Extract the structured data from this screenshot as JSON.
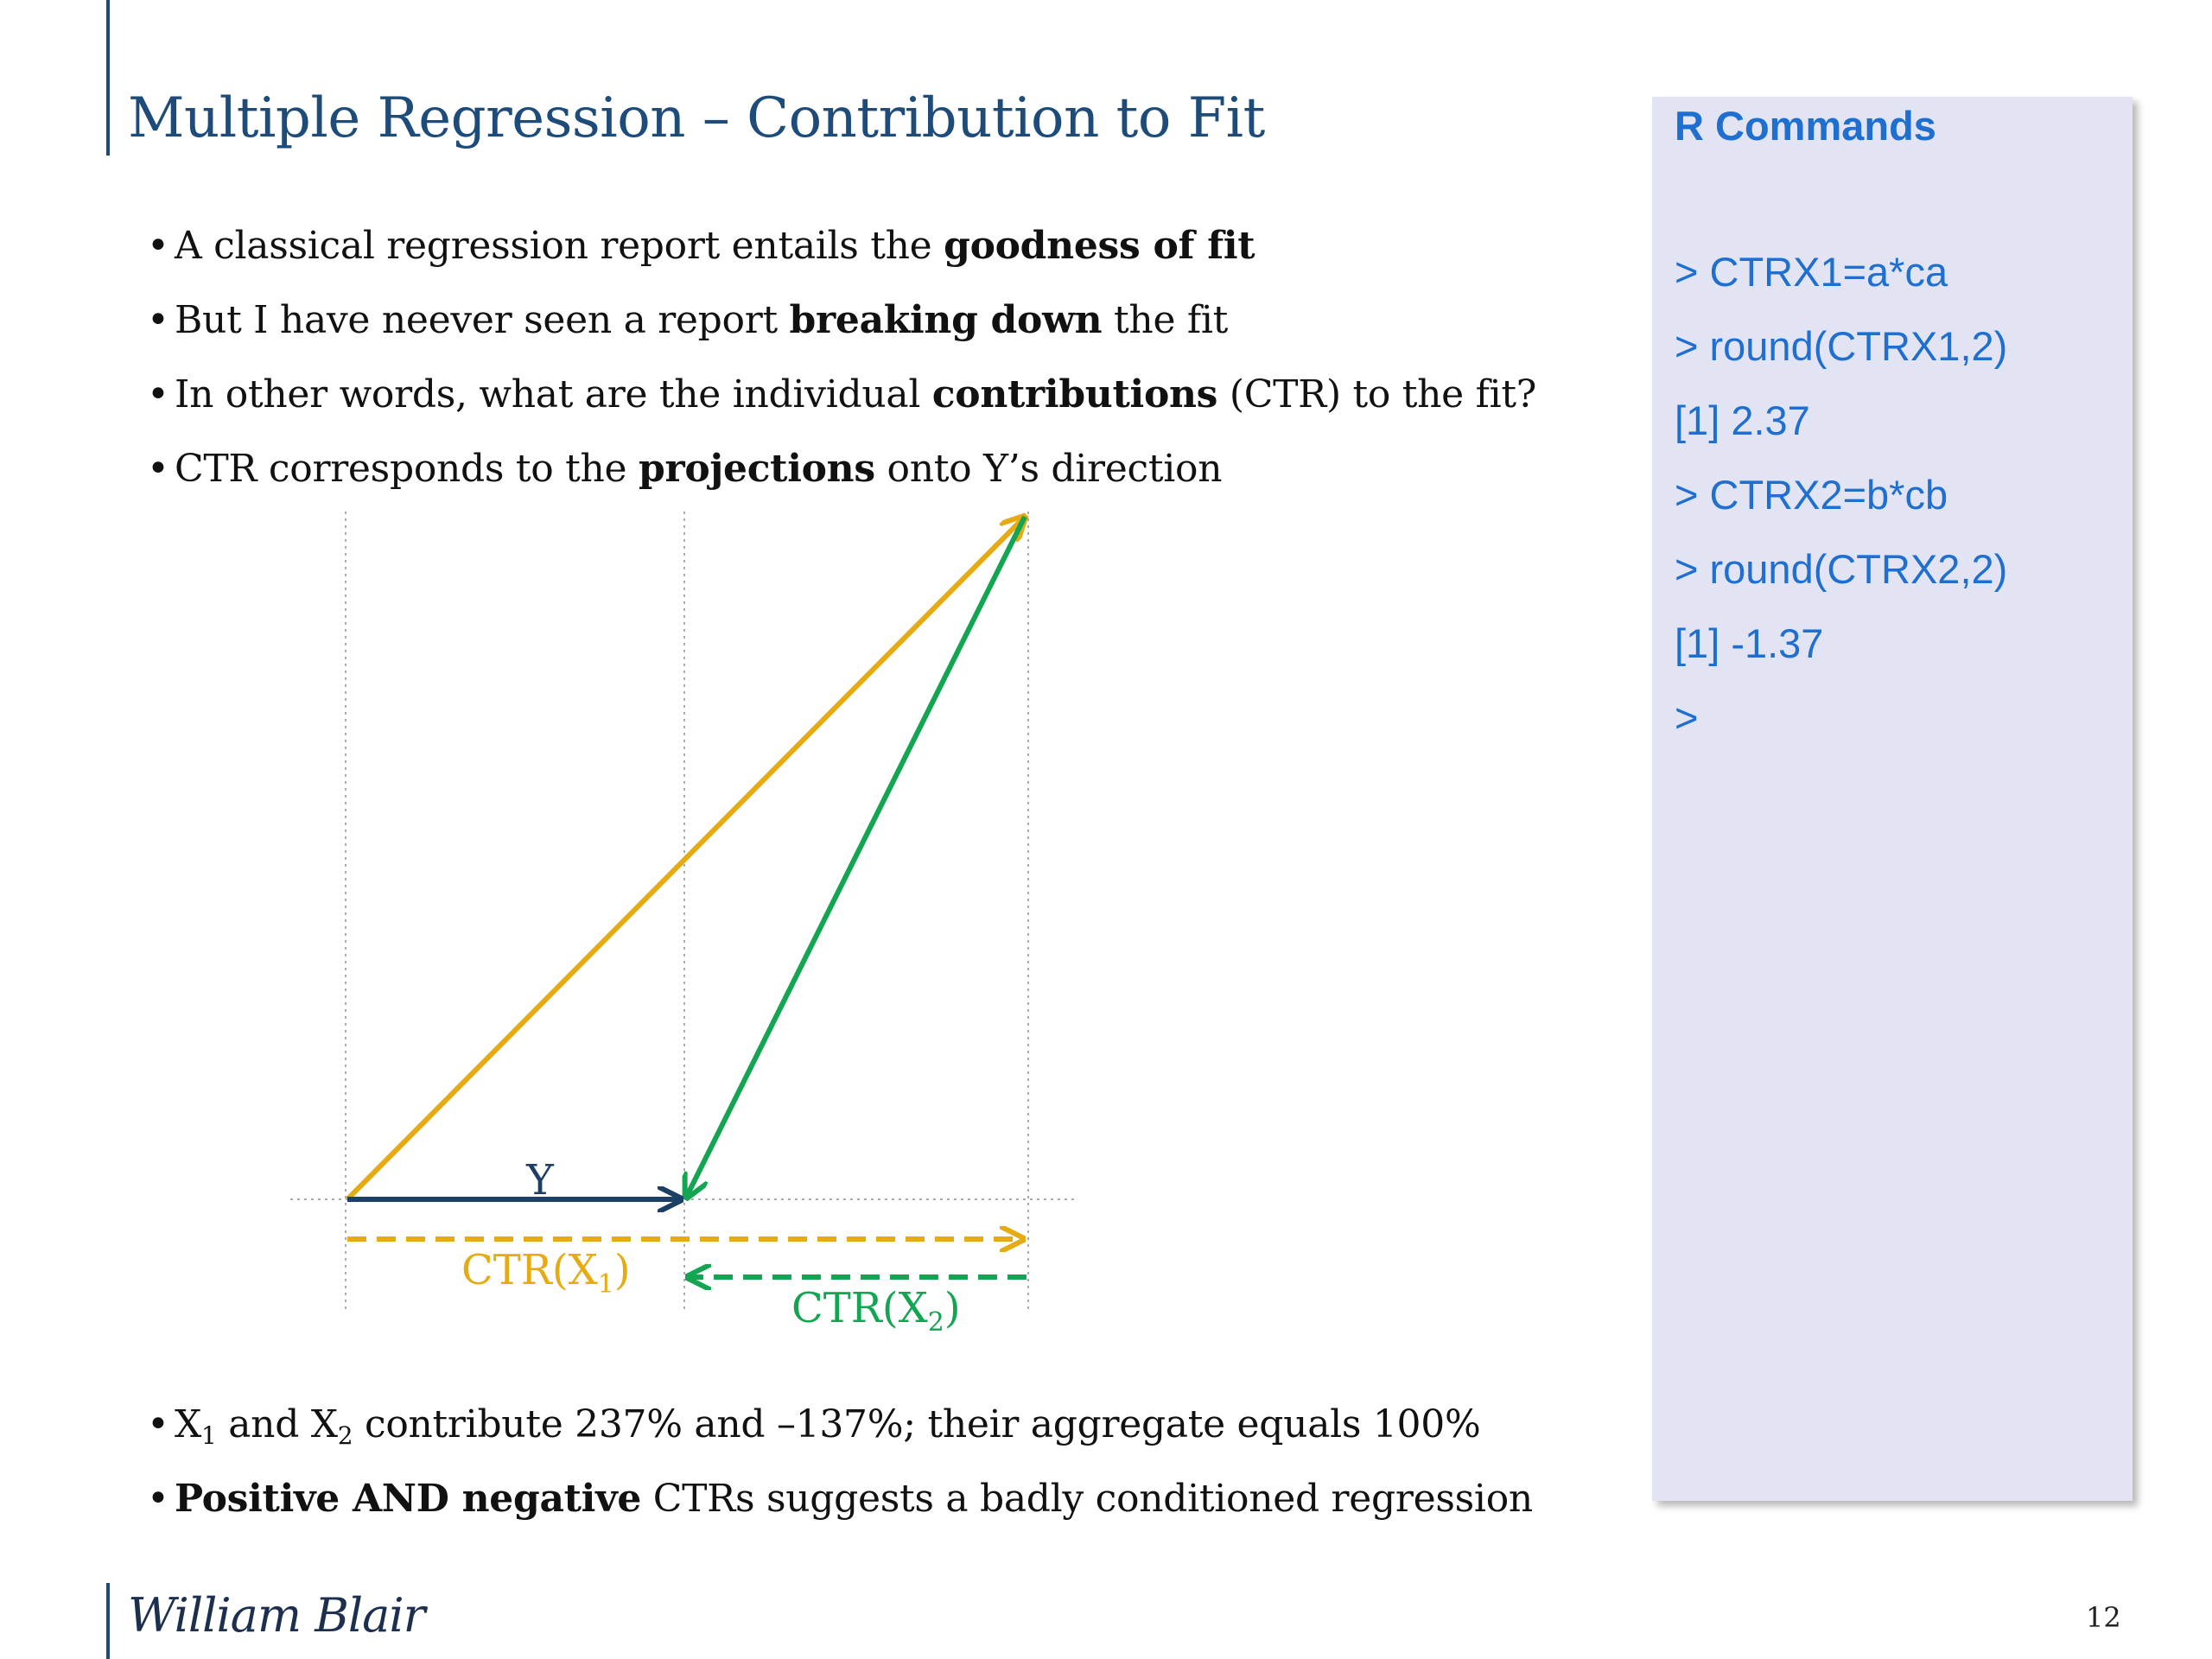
{
  "slide": {
    "title": "Multiple Regression – Contribution to Fit",
    "page_number": "12"
  },
  "bullets_top": [
    {
      "before": "A classical regression report entails the ",
      "bold": "goodness of fit",
      "after": ""
    },
    {
      "before": "But I have neever seen a report ",
      "bold": "breaking down",
      "after": " the fit"
    },
    {
      "before": "In other words, what are the individual ",
      "bold": "contributions",
      "after": " (CTR) to the fit?"
    },
    {
      "before": "CTR corresponds to the ",
      "bold": "projections",
      "after": " onto Y’s direction"
    }
  ],
  "bullets_bottom": {
    "b1_x1": "X",
    "b1_sub1": "1",
    "b1_and": " and X",
    "b1_sub2": "2",
    "b1_rest": " contribute 237% and –137%; their aggregate equals 100%",
    "b2_bold": "Positive AND negative",
    "b2_rest": " CTRs suggests a badly conditioned regression"
  },
  "diagram": {
    "y_label": "Y",
    "ctr1_label": "CTR(X",
    "ctr1_sub": "1",
    "ctr1_close": ")",
    "ctr2_label": "CTR(X",
    "ctr2_sub": "2",
    "ctr2_close": ")",
    "colors": {
      "y": "#1c3f66",
      "x1": "#e6aa12",
      "x2": "#13a552",
      "guide": "#aaaaaa"
    }
  },
  "r_panel": {
    "title": "R Commands",
    "lines": [
      "> CTRX1=a*ca",
      "> round(CTRX1,2)",
      "[1] 2.37",
      "> CTRX2=b*cb",
      "> round(CTRX2,2)",
      "[1] -1.37",
      ">"
    ]
  },
  "footer": {
    "logo": "William Blair"
  }
}
